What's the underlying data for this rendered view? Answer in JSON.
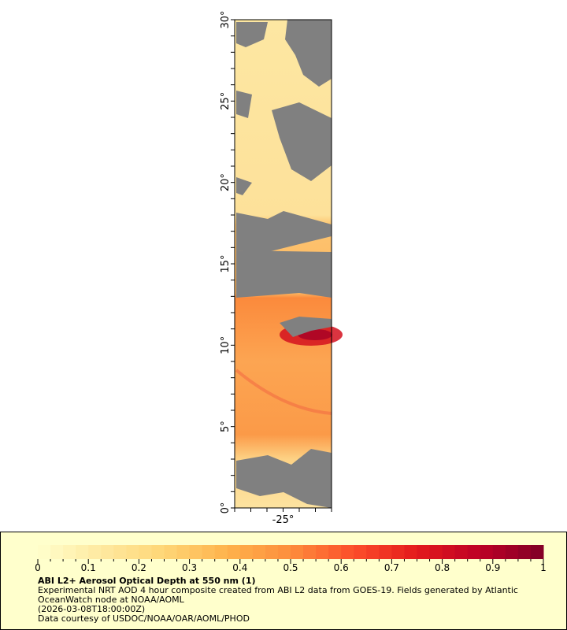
{
  "map": {
    "lat_ticks": [
      "0°",
      "5°",
      "10°",
      "15°",
      "20°",
      "25°",
      "30°"
    ],
    "lon_ticks": [
      "-25°"
    ],
    "lat_range": [
      0,
      30
    ],
    "lon_range": [
      -28,
      -22
    ],
    "missing_color": "#808080",
    "colors": {
      "low": "#fde9a5",
      "mid": "#fdc468",
      "high": "#fb9e4a",
      "peak": "#d3101e"
    }
  },
  "legend": {
    "colorbar_stops": [
      "#ffffcc",
      "#fee9a0",
      "#fed676",
      "#feb24c",
      "#fd8d3c",
      "#fc4e2a",
      "#e31a1c",
      "#bd0026",
      "#800026"
    ],
    "range": [
      0,
      1
    ],
    "tick_labels": [
      "0",
      "0.1",
      "0.2",
      "0.3",
      "0.4",
      "0.5",
      "0.6",
      "0.7",
      "0.8",
      "0.9",
      "1"
    ],
    "title": "ABI L2+ Aerosol Optical Depth at 550 nm (1)",
    "line1": "Experimental NRT AOD 4 hour composite created from ABI L2 data from GOES-19. Fields generated by Atlantic",
    "line2": "OceanWatch node at NOAA/AOML",
    "line3": "(2026-03-08T18:00:00Z)",
    "line4": "Data courtesy of USDOC/NOAA/OAR/AOML/PHOD"
  }
}
